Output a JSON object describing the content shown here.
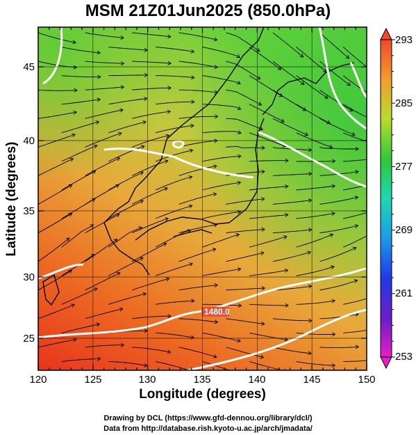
{
  "title": "MSM 21Z01Jun2025 (850.0hPa)",
  "xlabel": "Longitude (degrees)",
  "ylabel": "Latitude  (degrees)",
  "x_ticks": [
    "120",
    "125",
    "130",
    "135",
    "140",
    "145",
    "150"
  ],
  "y_ticks": [
    "25",
    "30",
    "35",
    "40",
    "45"
  ],
  "colorbar_labels": [
    "293",
    "285",
    "277",
    "269",
    "261",
    "253"
  ],
  "contour_label": "1480.0",
  "credits": {
    "line1": "Drawing by DCL (https://www.gfd-dennou.org/library/dcl/)",
    "line2": "Data from http://database.rish.kyoto-u.ac.jp/arch/jmadata/"
  },
  "colors": {
    "warm": "#e8501c",
    "mid": "#e8a23a",
    "cool": "#5cc53a",
    "contour": "#ffffff",
    "streamline": "#000000"
  },
  "map_data": {
    "projection": "equirectangular",
    "lon_range": [
      120,
      150
    ],
    "lat_range": [
      22.4,
      47.6
    ],
    "variable": "temperature (K) at 850.0hPa with streamlines",
    "colorbar_range": [
      253,
      293
    ]
  }
}
